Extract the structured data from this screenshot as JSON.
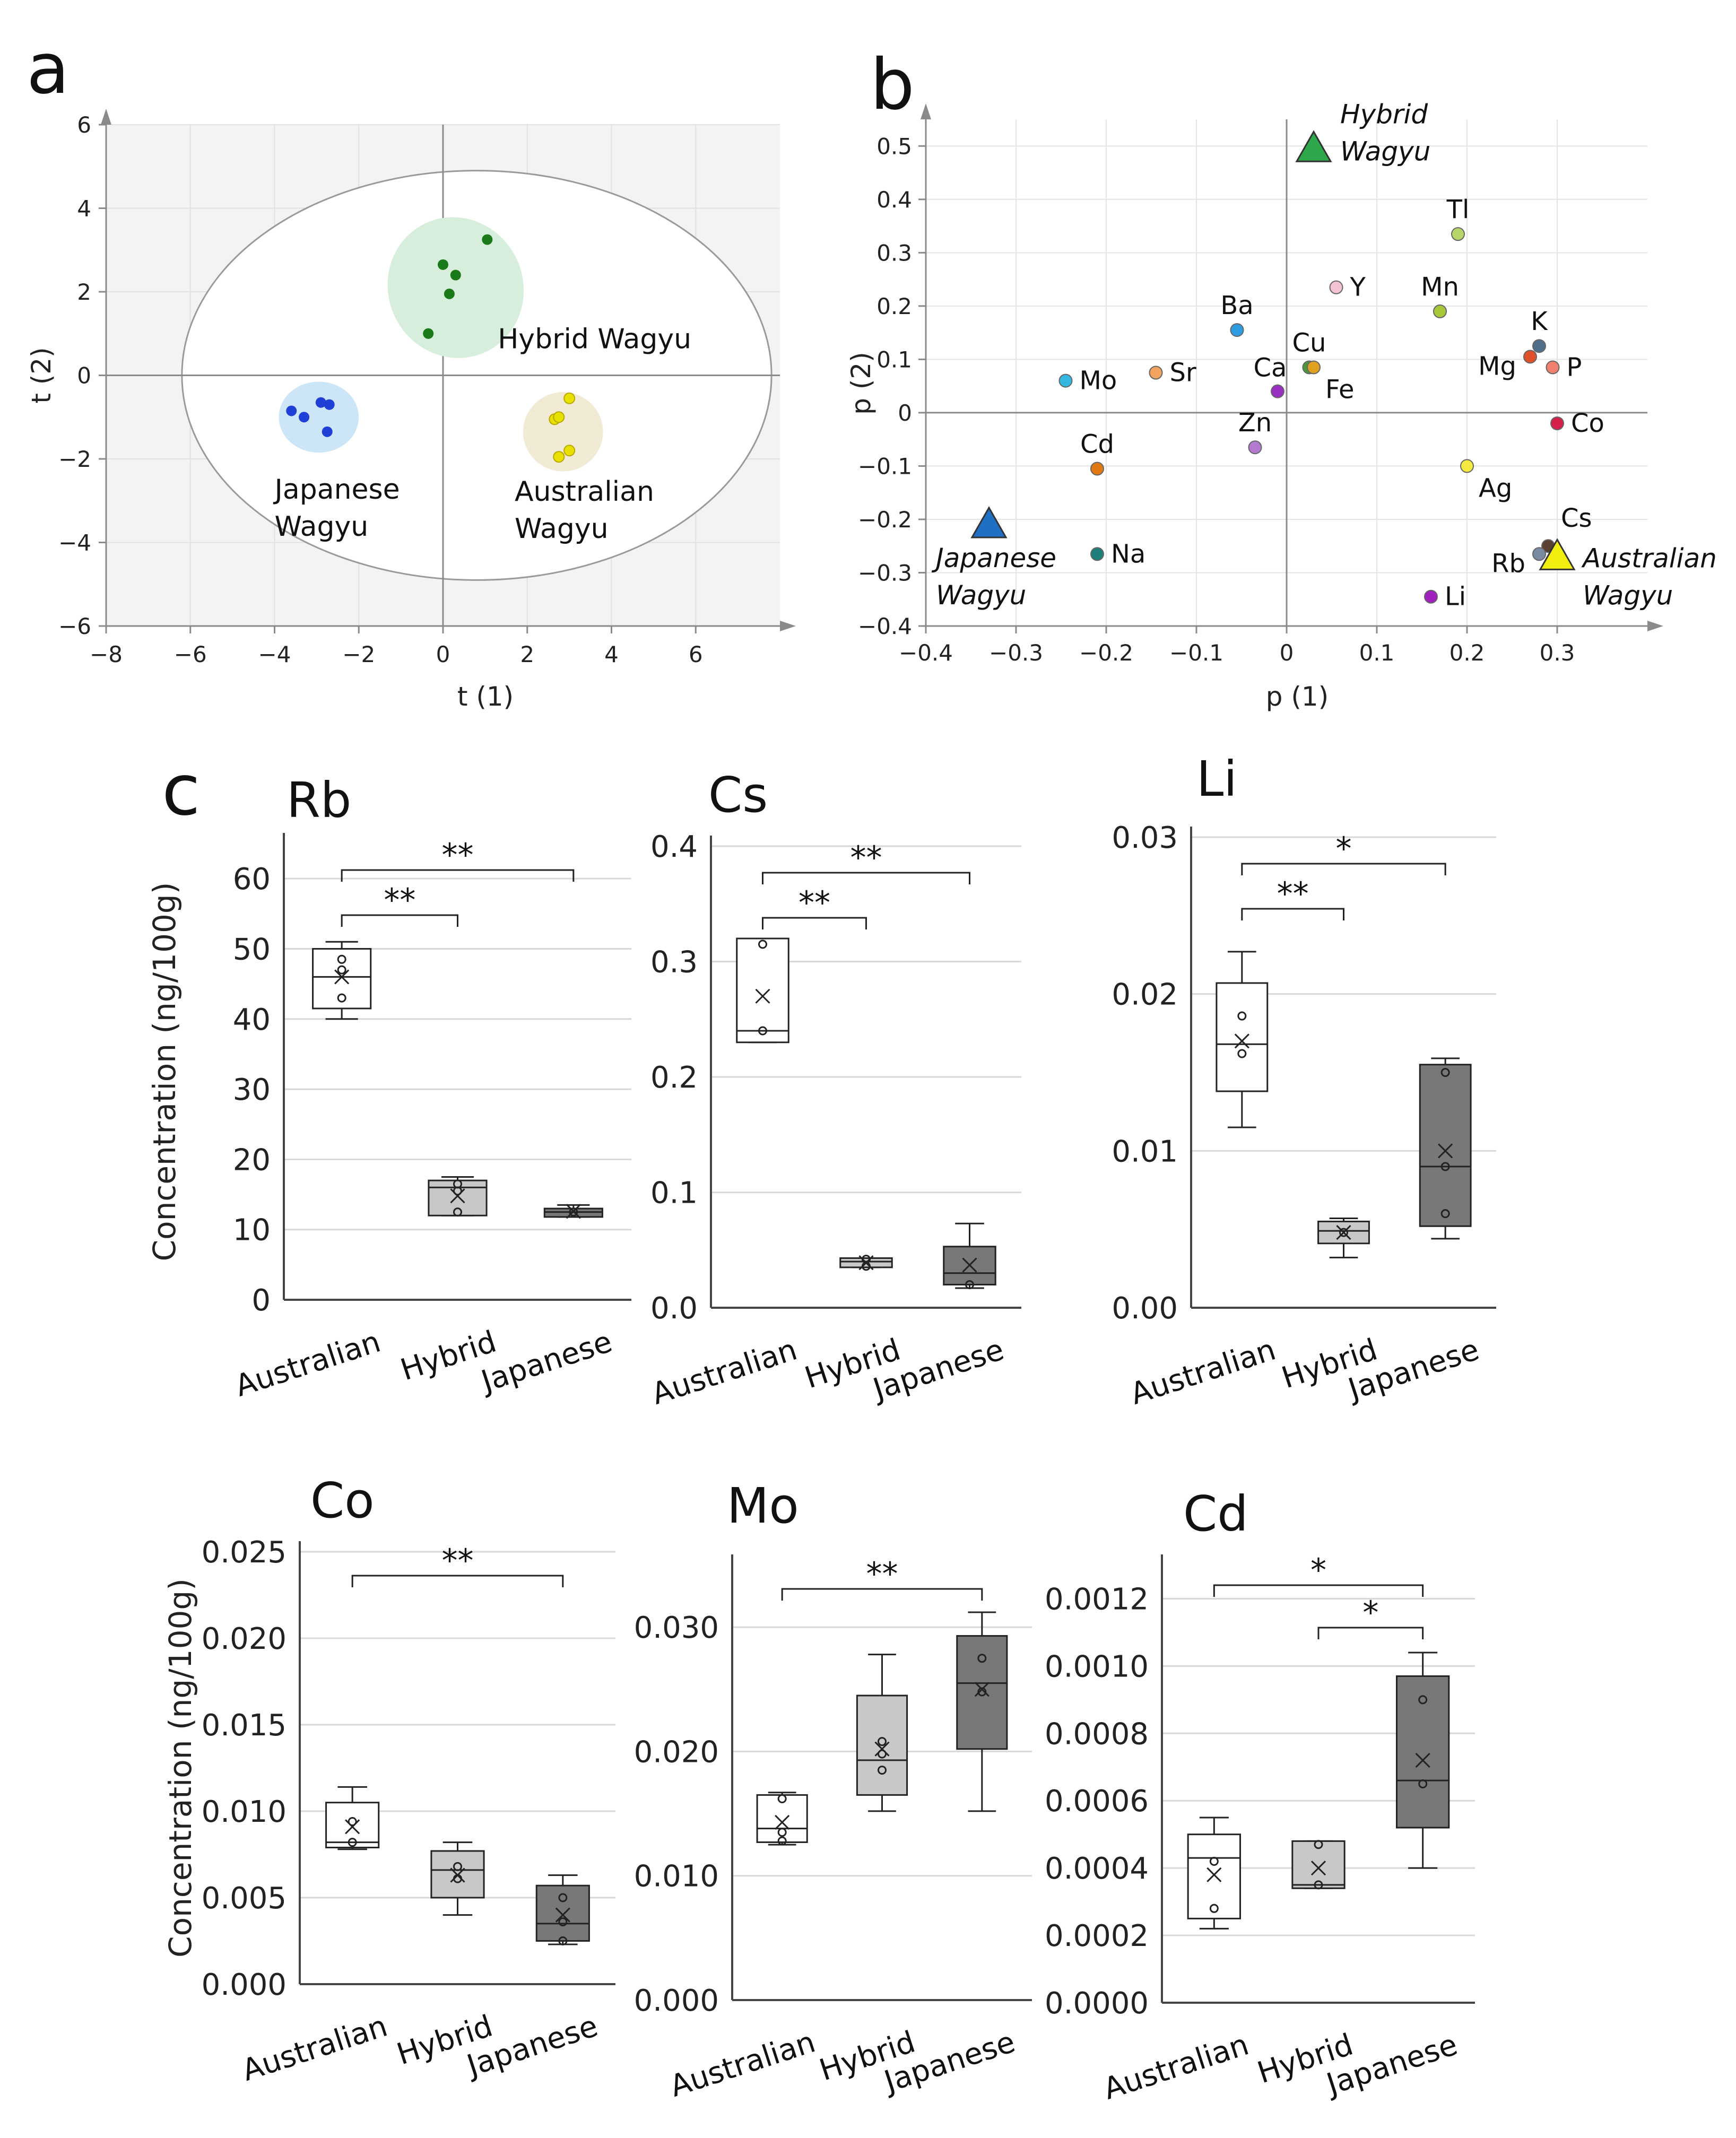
{
  "panel_labels": {
    "a": "a",
    "b": "b",
    "c": "c"
  },
  "chart_data": [
    {
      "id": "a",
      "type": "scatter",
      "title": "",
      "xlabel": "t (1)",
      "ylabel": "t (2)",
      "xlim": [
        -8,
        8
      ],
      "ylim": [
        -6,
        6
      ],
      "xticks": [
        -8,
        -6,
        -4,
        -2,
        0,
        2,
        4,
        6
      ],
      "yticks": [
        -6,
        -4,
        -2,
        0,
        2,
        4,
        6
      ],
      "ellipse": {
        "center": [
          0.8,
          0
        ],
        "rx": 7.0,
        "ry": 4.9
      },
      "groups": [
        {
          "name": "Japanese Wagyu",
          "label_lines": [
            "Japanese",
            "Wagyu"
          ],
          "color": "#1f3fd6",
          "halo": "#cde6f7",
          "halo_center": [
            -2.95,
            -1.0
          ],
          "halo_r": [
            0.95,
            0.85
          ],
          "points": [
            [
              -3.6,
              -0.85
            ],
            [
              -3.3,
              -1.0
            ],
            [
              -2.9,
              -0.65
            ],
            [
              -2.7,
              -0.7
            ],
            [
              -2.75,
              -1.35
            ]
          ]
        },
        {
          "name": "Hybrid Wagyu",
          "label_lines": [
            "Hybrid Wagyu"
          ],
          "color": "#1a7a1a",
          "halo": "#d6eedb",
          "halo_center": [
            0.3,
            2.1
          ],
          "halo_r": [
            1.6,
            1.7
          ],
          "points": [
            [
              0.0,
              2.65
            ],
            [
              0.3,
              2.4
            ],
            [
              1.05,
              3.25
            ],
            [
              0.15,
              1.95
            ],
            [
              -0.35,
              1.0
            ]
          ]
        },
        {
          "name": "Australian Wagyu",
          "label_lines": [
            "Australian",
            "Wagyu"
          ],
          "color": "#e8e000",
          "halo": "#f1ead5",
          "halo_center": [
            2.85,
            -1.35
          ],
          "halo_r": [
            0.95,
            0.95
          ],
          "points": [
            [
              3.0,
              -0.55
            ],
            [
              2.65,
              -1.05
            ],
            [
              2.75,
              -1.0
            ],
            [
              3.0,
              -1.8
            ],
            [
              2.75,
              -1.95
            ]
          ]
        }
      ]
    },
    {
      "id": "b",
      "type": "scatter",
      "title": "",
      "xlabel": "p (1)",
      "ylabel": "p (2)",
      "xlim": [
        -0.4,
        0.4
      ],
      "ylim": [
        -0.4,
        0.55
      ],
      "xticks": [
        -0.4,
        -0.3,
        -0.2,
        -0.1,
        0,
        0.1,
        0.2,
        0.3
      ],
      "yticks": [
        -0.4,
        -0.3,
        -0.2,
        -0.1,
        0,
        0.1,
        0.2,
        0.3,
        0.4,
        0.5
      ],
      "xtick_labels": [
        "−0.4",
        "−0.3",
        "−0.2",
        "−0.1",
        "0",
        "0.1",
        "0.2",
        "0.3"
      ],
      "ytick_labels": [
        "−0.4",
        "−0.3",
        "−0.2",
        "−0.1",
        "0",
        "0.1",
        "0.2",
        "0.3",
        "0.4",
        "0.5"
      ],
      "loadings": [
        {
          "label": "Mo",
          "x": -0.245,
          "y": 0.06,
          "color": "#35b8e0",
          "pos": "right"
        },
        {
          "label": "Sr",
          "x": -0.145,
          "y": 0.075,
          "color": "#f2a35e",
          "pos": "right"
        },
        {
          "label": "Ba",
          "x": -0.055,
          "y": 0.155,
          "color": "#2f9be0",
          "pos": "above"
        },
        {
          "label": "Ca",
          "x": -0.01,
          "y": 0.04,
          "color": "#9a2fc4",
          "pos": "above-left"
        },
        {
          "label": "Cu",
          "x": 0.025,
          "y": 0.085,
          "color": "#4a9a3a",
          "pos": "above"
        },
        {
          "label": "Fe",
          "x": 0.03,
          "y": 0.085,
          "color": "#e0a020",
          "pos": "below-right"
        },
        {
          "label": "Y",
          "x": 0.055,
          "y": 0.235,
          "color": "#f4c3d3",
          "pos": "right"
        },
        {
          "label": "Mn",
          "x": 0.17,
          "y": 0.19,
          "color": "#a8c83a",
          "pos": "above"
        },
        {
          "label": "Tl",
          "x": 0.19,
          "y": 0.335,
          "color": "#b7d66a",
          "pos": "above"
        },
        {
          "label": "K",
          "x": 0.28,
          "y": 0.125,
          "color": "#4f6e8a",
          "pos": "above"
        },
        {
          "label": "Mg",
          "x": 0.27,
          "y": 0.105,
          "color": "#e0502a",
          "pos": "below-left"
        },
        {
          "label": "P",
          "x": 0.295,
          "y": 0.085,
          "color": "#f08070",
          "pos": "right"
        },
        {
          "label": "Co",
          "x": 0.3,
          "y": -0.02,
          "color": "#d6204a",
          "pos": "right"
        },
        {
          "label": "Ag",
          "x": 0.2,
          "y": -0.1,
          "color": "#f4ea40",
          "pos": "below-right"
        },
        {
          "label": "Cd",
          "x": -0.21,
          "y": -0.105,
          "color": "#e07a10",
          "pos": "above"
        },
        {
          "label": "Zn",
          "x": -0.035,
          "y": -0.065,
          "color": "#b47ad0",
          "pos": "above"
        },
        {
          "label": "Na",
          "x": -0.21,
          "y": -0.265,
          "color": "#1e7f7a",
          "pos": "right"
        },
        {
          "label": "Li",
          "x": 0.16,
          "y": -0.345,
          "color": "#a020c0",
          "pos": "right"
        },
        {
          "label": "Cs",
          "x": 0.29,
          "y": -0.25,
          "color": "#5a4030",
          "pos": "above-right"
        },
        {
          "label": "Rb",
          "x": 0.28,
          "y": -0.265,
          "color": "#7a8aa0",
          "pos": "below-left"
        }
      ],
      "anchors": [
        {
          "label_lines": [
            "Hybrid",
            "Wagyu"
          ],
          "x": 0.03,
          "y": 0.495,
          "color": "#2ea84a"
        },
        {
          "label_lines": [
            "Japanese",
            "Wagyu"
          ],
          "x": -0.33,
          "y": -0.21,
          "color": "#1f6fc4"
        },
        {
          "label_lines": [
            "Australian",
            "Wagyu"
          ],
          "x": 0.3,
          "y": -0.27,
          "color": "#f2ee10"
        }
      ]
    },
    {
      "id": "c-Rb",
      "type": "box",
      "title": "Rb",
      "ylabel": "Concentration (ng/100g)",
      "categories": [
        "Australian",
        "Hybrid",
        "Japanese"
      ],
      "ylim": [
        0,
        65
      ],
      "yticks": [
        0,
        10,
        20,
        30,
        40,
        50,
        60
      ],
      "ytick_labels": [
        "0",
        "10",
        "20",
        "30",
        "40",
        "50",
        "60"
      ],
      "boxes": [
        {
          "min": 40,
          "q1": 41.5,
          "median": 46,
          "q3": 50,
          "max": 51,
          "mean": 46,
          "points": [
            43,
            47,
            48.5
          ]
        },
        {
          "min": 12,
          "q1": 12,
          "median": 16,
          "q3": 17,
          "max": 17.5,
          "mean": 14.8,
          "points": [
            12.5,
            15.5,
            16.5
          ]
        },
        {
          "min": 11.8,
          "q1": 11.8,
          "median": 12.5,
          "q3": 13,
          "max": 13.5,
          "mean": 12.6,
          "points": [
            12.5
          ]
        }
      ],
      "significance": [
        {
          "from": 0,
          "to": 1,
          "label": "**"
        },
        {
          "from": 0,
          "to": 2,
          "label": "**"
        }
      ]
    },
    {
      "id": "c-Cs",
      "type": "box",
      "title": "Cs",
      "ylabel": "",
      "categories": [
        "Australian",
        "Hybrid",
        "Japanese"
      ],
      "ylim": [
        0,
        0.4
      ],
      "yticks": [
        0,
        0.1,
        0.2,
        0.3,
        0.4
      ],
      "ytick_labels": [
        "0.0",
        "0.1",
        "0.2",
        "0.3",
        "0.4"
      ],
      "boxes": [
        {
          "min": 0.23,
          "q1": 0.23,
          "median": 0.24,
          "q3": 0.32,
          "max": 0.32,
          "mean": 0.27,
          "points": [
            0.24,
            0.315
          ]
        },
        {
          "min": 0.035,
          "q1": 0.035,
          "median": 0.04,
          "q3": 0.043,
          "max": 0.043,
          "mean": 0.039,
          "points": [
            0.036,
            0.042
          ]
        },
        {
          "min": 0.017,
          "q1": 0.02,
          "median": 0.03,
          "q3": 0.053,
          "max": 0.073,
          "mean": 0.037,
          "points": [
            0.02
          ]
        }
      ],
      "significance": [
        {
          "from": 0,
          "to": 1,
          "label": "**"
        },
        {
          "from": 0,
          "to": 2,
          "label": "**"
        }
      ]
    },
    {
      "id": "c-Li",
      "type": "box",
      "title": "Li",
      "ylabel": "",
      "categories": [
        "Australian",
        "Hybrid",
        "Japanese"
      ],
      "ylim": [
        0,
        0.03
      ],
      "yticks": [
        0,
        0.01,
        0.02,
        0.03
      ],
      "ytick_labels": [
        "0.00",
        "0.01",
        "0.02",
        "0.03"
      ],
      "boxes": [
        {
          "min": 0.0115,
          "q1": 0.0138,
          "median": 0.0168,
          "q3": 0.0207,
          "max": 0.0227,
          "mean": 0.017,
          "points": [
            0.0162,
            0.0186
          ]
        },
        {
          "min": 0.0032,
          "q1": 0.0041,
          "median": 0.0049,
          "q3": 0.0055,
          "max": 0.0057,
          "mean": 0.0048,
          "points": [
            0.0048
          ]
        },
        {
          "min": 0.0044,
          "q1": 0.0052,
          "median": 0.009,
          "q3": 0.0155,
          "max": 0.0159,
          "mean": 0.01,
          "points": [
            0.006,
            0.009,
            0.015
          ]
        }
      ],
      "significance": [
        {
          "from": 0,
          "to": 1,
          "label": "**"
        },
        {
          "from": 0,
          "to": 2,
          "label": "*"
        }
      ]
    },
    {
      "id": "c-Co",
      "type": "box",
      "title": "Co",
      "ylabel": "Concentration (ng/100g)",
      "categories": [
        "Australian",
        "Hybrid",
        "Japanese"
      ],
      "ylim": [
        0,
        0.025
      ],
      "yticks": [
        0,
        0.005,
        0.01,
        0.015,
        0.02,
        0.025
      ],
      "ytick_labels": [
        "0.000",
        "0.005",
        "0.010",
        "0.015",
        "0.020",
        "0.025"
      ],
      "boxes": [
        {
          "min": 0.0078,
          "q1": 0.0079,
          "median": 0.0082,
          "q3": 0.0105,
          "max": 0.0114,
          "mean": 0.0091,
          "points": [
            0.0082,
            0.0094
          ]
        },
        {
          "min": 0.004,
          "q1": 0.005,
          "median": 0.0066,
          "q3": 0.0077,
          "max": 0.0082,
          "mean": 0.0063,
          "points": [
            0.0061,
            0.0068
          ]
        },
        {
          "min": 0.0023,
          "q1": 0.0025,
          "median": 0.0035,
          "q3": 0.0057,
          "max": 0.0063,
          "mean": 0.004,
          "points": [
            0.0025,
            0.0036,
            0.005
          ]
        }
      ],
      "significance": [
        {
          "from": 0,
          "to": 2,
          "label": "**"
        }
      ]
    },
    {
      "id": "c-Mo",
      "type": "box",
      "title": "Mo",
      "ylabel": "",
      "categories": [
        "Australian",
        "Hybrid",
        "Japanese"
      ],
      "ylim": [
        0,
        0.035
      ],
      "yticks": [
        0,
        0.01,
        0.02,
        0.03
      ],
      "ytick_labels": [
        "0.000",
        "0.010",
        "0.020",
        "0.030"
      ],
      "boxes": [
        {
          "min": 0.0125,
          "q1": 0.0127,
          "median": 0.0138,
          "q3": 0.0165,
          "max": 0.0167,
          "mean": 0.0143,
          "points": [
            0.0128,
            0.0135,
            0.0162
          ]
        },
        {
          "min": 0.0152,
          "q1": 0.0165,
          "median": 0.0193,
          "q3": 0.0245,
          "max": 0.0278,
          "mean": 0.0202,
          "points": [
            0.0185,
            0.0198,
            0.0208
          ]
        },
        {
          "min": 0.0152,
          "q1": 0.0202,
          "median": 0.0255,
          "q3": 0.0293,
          "max": 0.0312,
          "mean": 0.025,
          "points": [
            0.0248,
            0.0275
          ]
        }
      ],
      "significance": [
        {
          "from": 0,
          "to": 2,
          "label": "**"
        }
      ]
    },
    {
      "id": "c-Cd",
      "type": "box",
      "title": "Cd",
      "ylabel": "",
      "categories": [
        "Australian",
        "Hybrid",
        "Japanese"
      ],
      "ylim": [
        0,
        0.0013
      ],
      "yticks": [
        0,
        0.0002,
        0.0004,
        0.0006,
        0.0008,
        0.001,
        0.0012
      ],
      "ytick_labels": [
        "0.0000",
        "0.0002",
        "0.0004",
        "0.0006",
        "0.0008",
        "0.0010",
        "0.0012"
      ],
      "boxes": [
        {
          "min": 0.00022,
          "q1": 0.00025,
          "median": 0.00043,
          "q3": 0.0005,
          "max": 0.00055,
          "mean": 0.00038,
          "points": [
            0.00028,
            0.00042
          ]
        },
        {
          "min": 0.00034,
          "q1": 0.00034,
          "median": 0.00035,
          "q3": 0.00048,
          "max": 0.00048,
          "mean": 0.0004,
          "points": [
            0.00035,
            0.00047
          ]
        },
        {
          "min": 0.0004,
          "q1": 0.00052,
          "median": 0.00066,
          "q3": 0.00097,
          "max": 0.00104,
          "mean": 0.00072,
          "points": [
            0.00065,
            0.0009
          ]
        }
      ],
      "significance": [
        {
          "from": 0,
          "to": 2,
          "label": "*"
        },
        {
          "from": 1,
          "to": 2,
          "label": "*"
        }
      ]
    }
  ]
}
